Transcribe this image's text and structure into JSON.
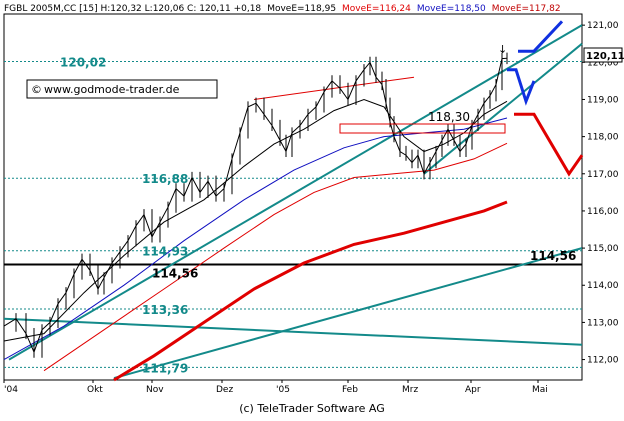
{
  "header": {
    "symbol": "FGBL 2005M,CC [15] H:120,32 L:120,06 C: 120,11 +0,18",
    "move1": "MoveE=118,95",
    "move2": "MoveE=116,24",
    "move3": "MoveE=118,50",
    "move4": "MoveE=117,82",
    "colors": {
      "move1": "#000000",
      "move2": "#e00000",
      "move3": "#1010c0",
      "move4": "#c00000"
    }
  },
  "watermark": "www.godmode-trader.de",
  "copyright_symbol": "©",
  "footer": "(c) TeleTrader Software AG",
  "chart_data": {
    "type": "line",
    "y_axis": {
      "ylim": [
        111.45,
        121.3
      ],
      "ticks": [
        "121,00",
        "120,00",
        "119,00",
        "118,00",
        "117,00",
        "116,00",
        "115,00",
        "114,00",
        "113,00",
        "112,00"
      ]
    },
    "x_axis": {
      "ticks": [
        "'04",
        "Okt",
        "Nov",
        "Dez",
        "'05",
        "Feb",
        "Mrz",
        "Apr",
        "Mai"
      ]
    },
    "last_price": {
      "label": "120,11",
      "value": 120.11
    },
    "levels": [
      {
        "label": "120,02",
        "value": 120.02,
        "color": "#138a8a",
        "label_color": "#138a8a"
      },
      {
        "label": "116,88",
        "value": 116.88,
        "color": "#138a8a",
        "label_color": "#138a8a"
      },
      {
        "label": "114,93",
        "value": 114.93,
        "color": "#138a8a",
        "label_color": "#138a8a"
      },
      {
        "label": "114,56",
        "value": 114.56,
        "color": "#000000",
        "label_color": "#000000"
      },
      {
        "label": "113,36",
        "value": 113.36,
        "color": "#138a8a",
        "label_color": "#138a8a"
      },
      {
        "label": "111,79",
        "value": 111.79,
        "color": "#138a8a",
        "label_color": "#138a8a"
      }
    ],
    "right_level_label": "114,56",
    "box_label": "118,30",
    "marker_label": "↓",
    "price_series": [
      [
        0,
        112.9
      ],
      [
        12,
        113.1
      ],
      [
        22,
        112.7
      ],
      [
        30,
        112.2
      ],
      [
        38,
        112.8
      ],
      [
        46,
        113.0
      ],
      [
        54,
        113.5
      ],
      [
        62,
        113.8
      ],
      [
        70,
        114.3
      ],
      [
        78,
        114.7
      ],
      [
        86,
        114.4
      ],
      [
        94,
        113.9
      ],
      [
        100,
        114.2
      ],
      [
        108,
        114.6
      ],
      [
        116,
        114.9
      ],
      [
        124,
        115.2
      ],
      [
        132,
        115.6
      ],
      [
        140,
        115.9
      ],
      [
        148,
        115.3
      ],
      [
        156,
        115.7
      ],
      [
        164,
        116.1
      ],
      [
        172,
        116.6
      ],
      [
        180,
        116.4
      ],
      [
        188,
        116.9
      ],
      [
        196,
        116.5
      ],
      [
        204,
        116.8
      ],
      [
        212,
        116.4
      ],
      [
        220,
        116.6
      ],
      [
        228,
        117.4
      ],
      [
        236,
        118.1
      ],
      [
        244,
        118.8
      ],
      [
        252,
        118.9
      ],
      [
        260,
        118.6
      ],
      [
        268,
        118.3
      ],
      [
        276,
        117.9
      ],
      [
        282,
        117.6
      ],
      [
        288,
        118.1
      ],
      [
        296,
        118.3
      ],
      [
        304,
        118.6
      ],
      [
        312,
        118.8
      ],
      [
        320,
        119.2
      ],
      [
        328,
        119.5
      ],
      [
        336,
        119.3
      ],
      [
        344,
        119.0
      ],
      [
        352,
        119.5
      ],
      [
        360,
        119.8
      ],
      [
        366,
        120.0
      ],
      [
        372,
        119.6
      ],
      [
        378,
        119.4
      ],
      [
        382,
        118.9
      ],
      [
        386,
        118.4
      ],
      [
        390,
        118.0
      ],
      [
        396,
        117.6
      ],
      [
        402,
        117.5
      ],
      [
        408,
        117.3
      ],
      [
        414,
        117.5
      ],
      [
        420,
        117.0
      ],
      [
        426,
        117.3
      ],
      [
        432,
        117.6
      ],
      [
        438,
        117.9
      ],
      [
        444,
        118.2
      ],
      [
        450,
        117.9
      ],
      [
        456,
        117.6
      ],
      [
        462,
        117.8
      ],
      [
        468,
        118.3
      ],
      [
        474,
        118.6
      ],
      [
        480,
        118.9
      ],
      [
        486,
        119.1
      ],
      [
        492,
        119.4
      ],
      [
        498,
        120.1
      ],
      [
        503,
        120.11
      ]
    ],
    "ma_black": [
      [
        0,
        112.5
      ],
      [
        40,
        112.7
      ],
      [
        80,
        113.8
      ],
      [
        120,
        114.8
      ],
      [
        160,
        115.7
      ],
      [
        200,
        116.3
      ],
      [
        240,
        117.2
      ],
      [
        270,
        117.8
      ],
      [
        300,
        118.2
      ],
      [
        330,
        118.7
      ],
      [
        360,
        119.0
      ],
      [
        380,
        118.8
      ],
      [
        400,
        118.0
      ],
      [
        420,
        117.6
      ],
      [
        440,
        117.8
      ],
      [
        460,
        118.1
      ],
      [
        480,
        118.6
      ],
      [
        503,
        118.95
      ]
    ],
    "ma_blue": [
      [
        0,
        112.0
      ],
      [
        60,
        112.9
      ],
      [
        120,
        114.0
      ],
      [
        180,
        115.2
      ],
      [
        240,
        116.3
      ],
      [
        290,
        117.1
      ],
      [
        340,
        117.7
      ],
      [
        380,
        118.0
      ],
      [
        420,
        118.1
      ],
      [
        460,
        118.2
      ],
      [
        503,
        118.5
      ]
    ],
    "ma_red_thin": [
      [
        40,
        111.7
      ],
      [
        100,
        112.8
      ],
      [
        160,
        113.9
      ],
      [
        220,
        115.0
      ],
      [
        270,
        115.9
      ],
      [
        310,
        116.5
      ],
      [
        350,
        116.9
      ],
      [
        390,
        117.0
      ],
      [
        430,
        117.1
      ],
      [
        470,
        117.4
      ],
      [
        503,
        117.82
      ]
    ],
    "ma_red_thick": [
      [
        110,
        111.45
      ],
      [
        150,
        112.1
      ],
      [
        200,
        113.0
      ],
      [
        250,
        113.9
      ],
      [
        300,
        114.6
      ],
      [
        350,
        115.1
      ],
      [
        400,
        115.4
      ],
      [
        440,
        115.7
      ],
      [
        480,
        116.0
      ],
      [
        503,
        116.24
      ]
    ],
    "trend_lines": [
      {
        "color": "#138a8a",
        "points": [
          [
            5,
            112.0
          ],
          [
            578,
            121.0
          ]
        ]
      },
      {
        "color": "#138a8a",
        "points": [
          [
            110,
            111.5
          ],
          [
            578,
            115.0
          ]
        ]
      },
      {
        "color": "#138a8a",
        "points": [
          [
            0,
            113.1
          ],
          [
            578,
            112.4
          ]
        ]
      },
      {
        "color": "#138a8a",
        "points": [
          [
            420,
            117.0
          ],
          [
            578,
            120.5
          ]
        ]
      },
      {
        "color": "#e00000",
        "points": [
          [
            250,
            119.0
          ],
          [
            410,
            119.6
          ]
        ]
      }
    ],
    "projection_blue": [
      [
        514,
        120.3
      ],
      [
        530,
        120.3
      ],
      [
        558,
        121.1
      ]
    ],
    "projection_blue2": [
      [
        503,
        119.8
      ],
      [
        512,
        119.8
      ],
      [
        522,
        118.95
      ],
      [
        530,
        119.5
      ]
    ],
    "projection_red": [
      [
        510,
        118.6
      ],
      [
        530,
        118.6
      ],
      [
        565,
        117.0
      ],
      [
        578,
        117.5
      ]
    ]
  }
}
